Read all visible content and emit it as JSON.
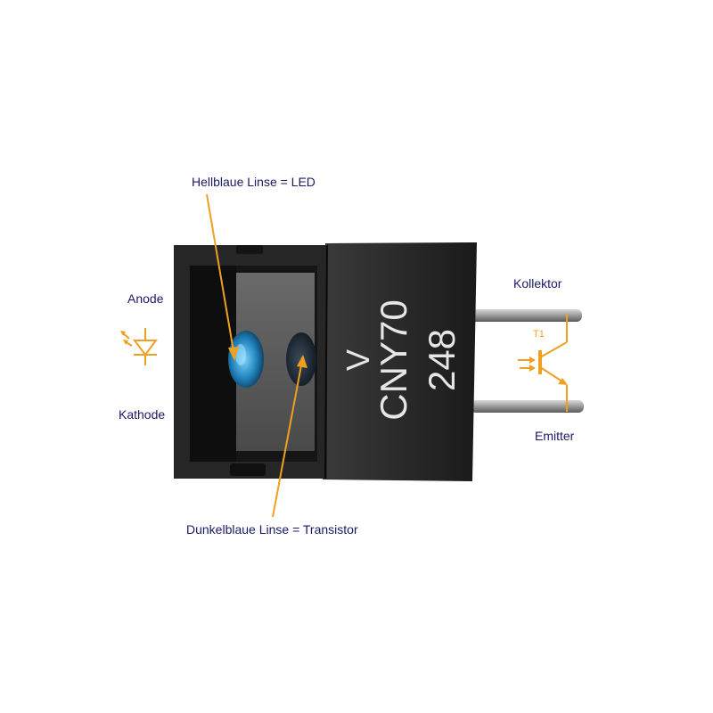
{
  "labels": {
    "led": "Hellblaue Linse = LED",
    "transistor": "Dunkelblaue Linse = Transistor",
    "anode": "Anode",
    "kathode": "Kathode",
    "kollektor": "Kollektor",
    "emitter": "Emitter"
  },
  "component": {
    "marking_line1": "V",
    "marking_line2": "CNY70",
    "marking_line3": "248"
  },
  "symbol": {
    "transistor_ref": "T1"
  },
  "colors": {
    "annotation": "#f0a020",
    "text": "#1a1a66",
    "body": "#1e1e1e",
    "led_lens": "#2a8fc8",
    "transistor_lens": "#1a2a40"
  }
}
